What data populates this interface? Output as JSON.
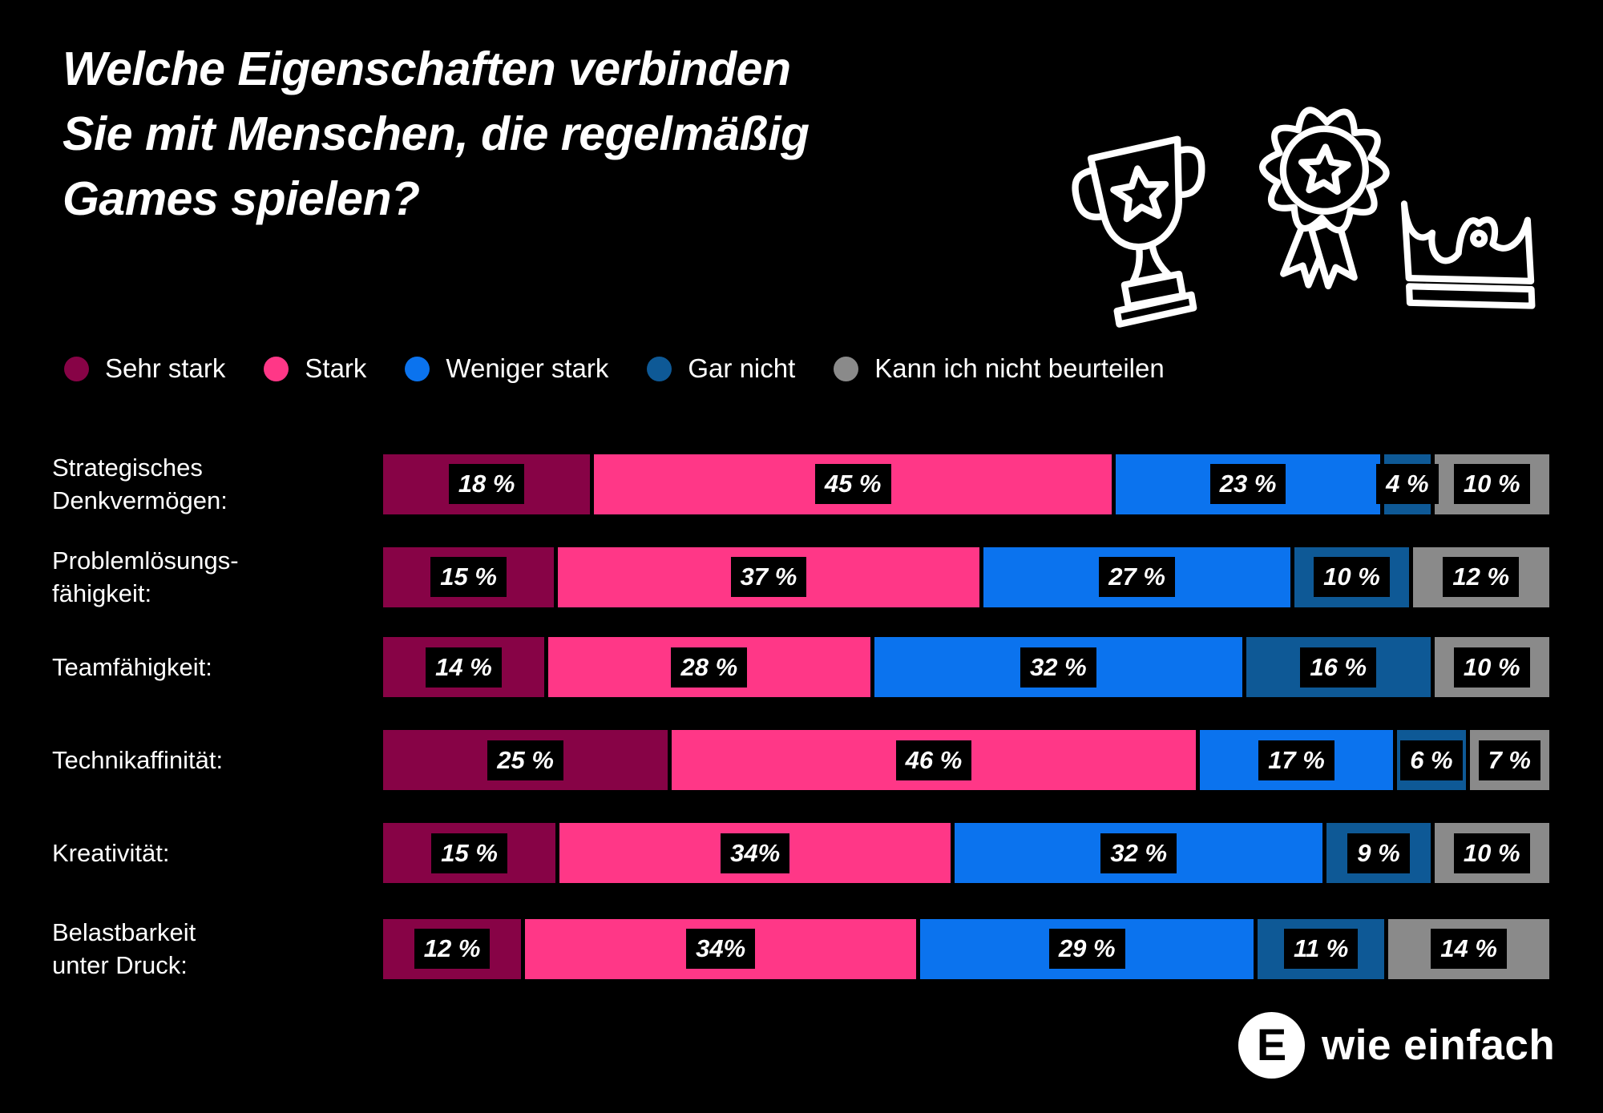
{
  "title": {
    "lines": [
      "Welche Eigenschaften verbinden",
      "Sie mit Menschen, die regelmäßig",
      "Games spielen?"
    ]
  },
  "icons": [
    "trophy-icon",
    "medal-icon",
    "crown-icon"
  ],
  "colors": {
    "background": "#000000",
    "text": "#FFFFFF",
    "value_label_bg": "#000000"
  },
  "chart_data": {
    "type": "bar",
    "orientation": "horizontal-stacked",
    "unit": "%",
    "xlim": [
      0,
      100
    ],
    "legend_position": "top",
    "categories": [
      "Strategisches Denkvermögen:",
      "Problemlösungsfähigkeit:",
      "Teamfähigkeit:",
      "Technikaffinität:",
      "Kreativität:",
      "Belastbarkeit unter Druck:"
    ],
    "category_lines": [
      [
        "Strategisches",
        "Denkvermögen:"
      ],
      [
        "Problemlösungs-",
        "fähigkeit:"
      ],
      [
        "Teamfähigkeit:"
      ],
      [
        "Technikaffinität:"
      ],
      [
        "Kreativität:"
      ],
      [
        "Belastbarkeit",
        "unter Druck:"
      ]
    ],
    "series": [
      {
        "name": "Sehr stark",
        "color": "#870346",
        "values": [
          18,
          15,
          14,
          25,
          15,
          12
        ]
      },
      {
        "name": "Stark",
        "color": "#FF3787",
        "values": [
          45,
          37,
          28,
          46,
          34,
          34
        ]
      },
      {
        "name": "Weniger stark",
        "color": "#0B73EE",
        "values": [
          23,
          27,
          32,
          17,
          32,
          29
        ]
      },
      {
        "name": "Gar nicht",
        "color": "#0E5996",
        "values": [
          4,
          10,
          16,
          6,
          9,
          11
        ]
      },
      {
        "name": "Kann ich nicht beurteilen",
        "color": "#8A8A8A",
        "values": [
          10,
          12,
          10,
          7,
          10,
          14
        ]
      }
    ],
    "value_labels": [
      [
        "18 %",
        "45 %",
        "23 %",
        "4 %",
        "10 %"
      ],
      [
        "15 %",
        "37 %",
        "27 %",
        "10 %",
        "12 %"
      ],
      [
        "14 %",
        "28 %",
        "32 %",
        "16 %",
        "10 %"
      ],
      [
        "25 %",
        "46 %",
        "17 %",
        "6 %",
        "7 %"
      ],
      [
        "15 %",
        "34%",
        "32 %",
        "9 %",
        "10 %"
      ],
      [
        "12 %",
        "34%",
        "29 %",
        "11 %",
        "14 %"
      ]
    ]
  },
  "logo": {
    "initial": "E",
    "text": "wie einfach"
  }
}
